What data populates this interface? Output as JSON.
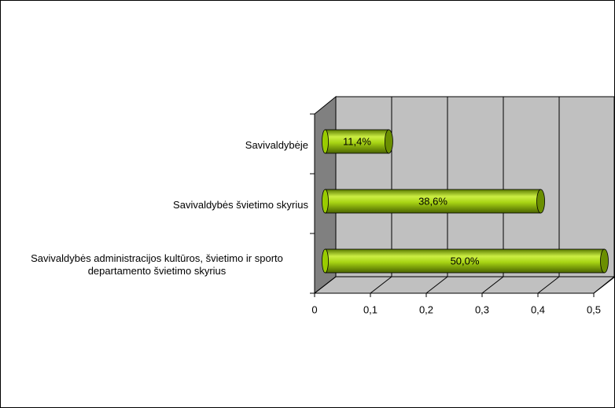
{
  "chart_data": {
    "type": "bar",
    "orientation": "horizontal",
    "categories": [
      "Savivaldybėje",
      "Savivaldybės švietimo skyrius",
      "Savivaldybės administracijos kultūros, švietimo ir sporto departamento švietimo skyrius"
    ],
    "values": [
      0.114,
      0.386,
      0.5
    ],
    "value_labels": [
      "11,4%",
      "38,6%",
      "50,0%"
    ],
    "color": "#99cc00",
    "xlim": [
      0,
      0.5
    ],
    "xticks": [
      0,
      {
        "value": 0.1,
        "label": "0,1"
      },
      {
        "value": 0.2,
        "label": "0,2"
      },
      {
        "value": 0.3,
        "label": "0,3"
      },
      {
        "value": 0.4,
        "label": "0,4"
      },
      {
        "value": 0.5,
        "label": "0,5"
      }
    ],
    "grid": true
  }
}
